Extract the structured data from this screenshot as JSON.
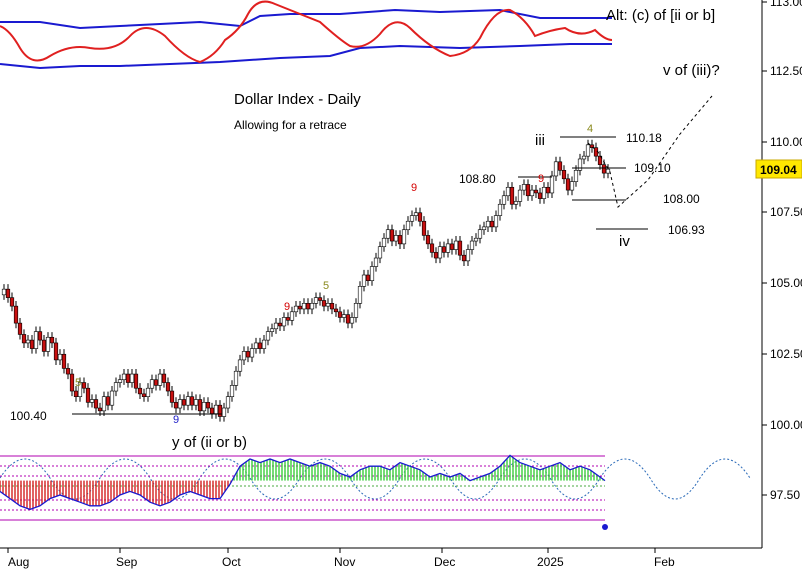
{
  "chart_data": {
    "type": "candlestick",
    "title": "Dollar Index - Daily",
    "subtitle": "Allowing for a retrace",
    "yticks": [
      "113.00",
      "112.50",
      "110.00",
      "107.50",
      "105.00",
      "102.50",
      "100.00",
      "97.50"
    ],
    "xticks": [
      "Aug",
      "Sep",
      "Oct",
      "Nov",
      "Dec",
      "2025",
      "Feb"
    ],
    "last_price": "109.04",
    "levels": {
      "l100_40": "100.40",
      "l108_80": "108.80",
      "l110_18": "110.18",
      "l109_10": "109.10",
      "l108_00": "108.00",
      "l106_93": "106.93"
    },
    "wave_labels": {
      "alt": "Alt: (c) of [ii or b]",
      "viii": "v of (iii)?",
      "iii": "iii",
      "iv": "iv",
      "y": "y of (ii or b)",
      "four": "4"
    },
    "counts": {
      "aug_five": "5",
      "sep_nine": "9",
      "oct_nine": "9",
      "oct_five": "5",
      "nov_nine": "9",
      "dec_nine": "9"
    },
    "price_points": [
      [
        0,
        104.6
      ],
      [
        4,
        104.8
      ],
      [
        8,
        104.5
      ],
      [
        12,
        104.2
      ],
      [
        16,
        103.6
      ],
      [
        20,
        103.2
      ],
      [
        24,
        102.9
      ],
      [
        28,
        103.0
      ],
      [
        32,
        102.7
      ],
      [
        36,
        103.3
      ],
      [
        40,
        103.0
      ],
      [
        44,
        102.6
      ],
      [
        48,
        103.1
      ],
      [
        52,
        102.9
      ],
      [
        56,
        102.3
      ],
      [
        60,
        102.5
      ],
      [
        64,
        102.0
      ],
      [
        68,
        101.8
      ],
      [
        72,
        101.2
      ],
      [
        76,
        101.0
      ],
      [
        80,
        101.5
      ],
      [
        84,
        101.3
      ],
      [
        88,
        100.8
      ],
      [
        92,
        100.9
      ],
      [
        96,
        100.6
      ],
      [
        100,
        100.5
      ],
      [
        104,
        101.0
      ],
      [
        108,
        100.7
      ],
      [
        112,
        101.2
      ],
      [
        116,
        101.5
      ],
      [
        120,
        101.6
      ],
      [
        124,
        101.8
      ],
      [
        128,
        101.5
      ],
      [
        132,
        101.8
      ],
      [
        136,
        101.3
      ],
      [
        140,
        101.1
      ],
      [
        144,
        101.0
      ],
      [
        148,
        101.3
      ],
      [
        152,
        101.6
      ],
      [
        156,
        101.4
      ],
      [
        160,
        101.8
      ],
      [
        164,
        101.5
      ],
      [
        168,
        101.2
      ],
      [
        172,
        100.8
      ],
      [
        176,
        100.6
      ],
      [
        180,
        100.9
      ],
      [
        184,
        100.7
      ],
      [
        188,
        101.0
      ],
      [
        192,
        100.7
      ],
      [
        196,
        100.9
      ],
      [
        200,
        100.5
      ],
      [
        204,
        100.8
      ],
      [
        208,
        100.6
      ],
      [
        212,
        100.4
      ],
      [
        216,
        100.7
      ],
      [
        220,
        100.3
      ],
      [
        224,
        100.6
      ],
      [
        228,
        101.0
      ],
      [
        232,
        101.4
      ],
      [
        236,
        101.9
      ],
      [
        240,
        102.3
      ],
      [
        244,
        102.6
      ],
      [
        248,
        102.4
      ],
      [
        252,
        102.7
      ],
      [
        256,
        102.9
      ],
      [
        260,
        102.7
      ],
      [
        264,
        103.0
      ],
      [
        268,
        103.3
      ],
      [
        272,
        103.4
      ],
      [
        276,
        103.6
      ],
      [
        280,
        103.5
      ],
      [
        284,
        103.8
      ],
      [
        288,
        103.7
      ],
      [
        292,
        104.0
      ],
      [
        296,
        104.2
      ],
      [
        300,
        104.1
      ],
      [
        304,
        104.3
      ],
      [
        308,
        104.1
      ],
      [
        312,
        104.3
      ],
      [
        316,
        104.5
      ],
      [
        320,
        104.4
      ],
      [
        324,
        104.2
      ],
      [
        328,
        104.3
      ],
      [
        332,
        104.1
      ],
      [
        336,
        104.0
      ],
      [
        340,
        103.8
      ],
      [
        344,
        103.9
      ],
      [
        348,
        103.6
      ],
      [
        352,
        103.8
      ],
      [
        356,
        104.3
      ],
      [
        360,
        104.9
      ],
      [
        364,
        105.3
      ],
      [
        368,
        105.1
      ],
      [
        372,
        105.6
      ],
      [
        376,
        105.9
      ],
      [
        380,
        106.3
      ],
      [
        384,
        106.6
      ],
      [
        388,
        106.9
      ],
      [
        392,
        106.5
      ],
      [
        396,
        106.7
      ],
      [
        400,
        106.4
      ],
      [
        404,
        106.9
      ],
      [
        408,
        107.2
      ],
      [
        412,
        107.4
      ],
      [
        416,
        107.5
      ],
      [
        420,
        107.2
      ],
      [
        424,
        106.7
      ],
      [
        428,
        106.4
      ],
      [
        432,
        106.1
      ],
      [
        436,
        105.9
      ],
      [
        440,
        106.3
      ],
      [
        444,
        106.1
      ],
      [
        448,
        106.4
      ],
      [
        452,
        106.2
      ],
      [
        456,
        106.5
      ],
      [
        460,
        106.0
      ],
      [
        464,
        105.8
      ],
      [
        468,
        106.2
      ],
      [
        472,
        106.5
      ],
      [
        476,
        106.6
      ],
      [
        480,
        106.9
      ],
      [
        484,
        107.0
      ],
      [
        488,
        107.2
      ],
      [
        492,
        107.0
      ],
      [
        496,
        107.4
      ],
      [
        500,
        107.8
      ],
      [
        504,
        108.1
      ],
      [
        508,
        108.4
      ],
      [
        512,
        107.8
      ],
      [
        516,
        107.9
      ],
      [
        520,
        108.3
      ],
      [
        524,
        108.5
      ],
      [
        528,
        108.1
      ],
      [
        532,
        108.3
      ],
      [
        536,
        108.2
      ],
      [
        540,
        108.0
      ],
      [
        544,
        108.4
      ],
      [
        548,
        108.2
      ],
      [
        552,
        108.8
      ],
      [
        556,
        109.3
      ],
      [
        560,
        109.0
      ],
      [
        564,
        108.7
      ],
      [
        568,
        108.3
      ],
      [
        572,
        108.6
      ],
      [
        576,
        109.0
      ],
      [
        580,
        109.4
      ],
      [
        584,
        109.5
      ],
      [
        588,
        109.9
      ],
      [
        592,
        109.8
      ],
      [
        596,
        109.5
      ],
      [
        600,
        109.2
      ],
      [
        604,
        108.9
      ],
      [
        608,
        109.04
      ]
    ],
    "oscillator_points": [
      [
        0,
        97.6
      ],
      [
        10,
        97.4
      ],
      [
        20,
        97.2
      ],
      [
        30,
        97.1
      ],
      [
        40,
        97.2
      ],
      [
        50,
        97.4
      ],
      [
        60,
        97.5
      ],
      [
        70,
        97.4
      ],
      [
        80,
        97.3
      ],
      [
        90,
        97.2
      ],
      [
        100,
        97.2
      ],
      [
        110,
        97.3
      ],
      [
        120,
        97.5
      ],
      [
        130,
        97.6
      ],
      [
        140,
        97.5
      ],
      [
        150,
        97.3
      ],
      [
        160,
        97.2
      ],
      [
        170,
        97.3
      ],
      [
        180,
        97.5
      ],
      [
        190,
        97.6
      ],
      [
        200,
        97.5
      ],
      [
        210,
        97.4
      ],
      [
        220,
        97.4
      ],
      [
        230,
        97.8
      ],
      [
        240,
        98.3
      ],
      [
        250,
        98.5
      ],
      [
        260,
        98.4
      ],
      [
        270,
        98.5
      ],
      [
        280,
        98.4
      ],
      [
        290,
        98.5
      ],
      [
        300,
        98.4
      ],
      [
        310,
        98.3
      ],
      [
        320,
        98.4
      ],
      [
        330,
        98.3
      ],
      [
        340,
        98.1
      ],
      [
        350,
        98.0
      ],
      [
        360,
        98.2
      ],
      [
        370,
        98.3
      ],
      [
        380,
        98.3
      ],
      [
        390,
        98.2
      ],
      [
        400,
        98.4
      ],
      [
        410,
        98.3
      ],
      [
        420,
        98.2
      ],
      [
        430,
        98.0
      ],
      [
        440,
        98.1
      ],
      [
        450,
        98.0
      ],
      [
        460,
        98.1
      ],
      [
        470,
        97.9
      ],
      [
        480,
        98.0
      ],
      [
        490,
        98.1
      ],
      [
        500,
        98.3
      ],
      [
        510,
        98.6
      ],
      [
        520,
        98.4
      ],
      [
        530,
        98.3
      ],
      [
        540,
        98.2
      ],
      [
        550,
        98.3
      ],
      [
        560,
        98.4
      ],
      [
        570,
        98.2
      ],
      [
        580,
        98.3
      ],
      [
        590,
        98.2
      ],
      [
        600,
        98.0
      ],
      [
        605,
        97.9
      ]
    ]
  }
}
